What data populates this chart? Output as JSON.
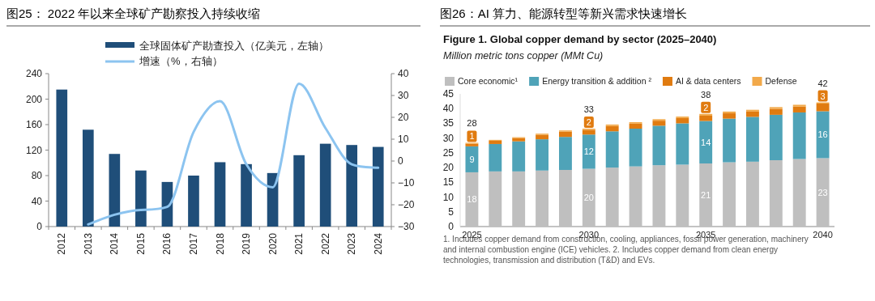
{
  "chart_data": [
    {
      "type": "bar",
      "title": "图25：  2022 年以来全球矿产勘察投入持续收缩",
      "categories": [
        "2012",
        "2013",
        "2014",
        "2015",
        "2016",
        "2017",
        "2018",
        "2019",
        "2020",
        "2021",
        "2022",
        "2023",
        "2024"
      ],
      "series": [
        {
          "name": "全球固体矿产勘查投入（亿美元，左轴）",
          "color": "#1f4e79",
          "values": [
            215,
            152,
            114,
            88,
            70,
            80,
            101,
            98,
            84,
            112,
            130,
            128,
            125
          ]
        },
        {
          "name": "增速（%，右轴）",
          "type": "line",
          "axis": "y2",
          "color": "#8cc4f0",
          "values": [
            null,
            -29,
            -24.6,
            -22.4,
            -21,
            13.3,
            27.4,
            -1.5,
            -12,
            35.4,
            15.1,
            -1.5,
            -3.1
          ]
        }
      ],
      "ylim": [
        0,
        240
      ],
      "yticks": [
        0,
        40,
        80,
        120,
        160,
        200,
        240
      ],
      "y2lim": [
        -30,
        40
      ],
      "y2ticks": [
        -30,
        -20,
        -10,
        0,
        10,
        20,
        30,
        40
      ],
      "legend": "top"
    },
    {
      "type": "bar",
      "stacked": true,
      "title": "图26：AI 算力、能源转型等新兴需求快速增长",
      "subtitle": "Figure 1. Global copper demand by sector (2025–2040)",
      "annotations": [
        "Million metric tons copper (MMt Cu)",
        "1. Includes copper demand from construction, cooling, appliances, fossil power generation, machinery and internal combustion engine (ICE) vehicles. 2. Includes copper demand from clean energy technologies, transmission and distribution (T&D) and EVs."
      ],
      "categories": [
        "2025",
        null,
        null,
        null,
        null,
        "2030",
        null,
        null,
        null,
        null,
        "2035",
        null,
        null,
        null,
        null,
        "2040"
      ],
      "series": [
        {
          "name": "Core economic¹",
          "color": "#bfbfbf",
          "values": [
            18.4,
            18.7,
            18.7,
            19.0,
            19.2,
            19.6,
            20.0,
            20.4,
            20.8,
            21.0,
            21.4,
            21.8,
            22.0,
            22.5,
            22.9,
            23.2
          ],
          "value_labels": [
            "18",
            null,
            null,
            null,
            null,
            "20",
            null,
            null,
            null,
            null,
            "21",
            null,
            null,
            null,
            null,
            "23"
          ]
        },
        {
          "name": "Energy transition & addition ²",
          "color": "#4fa3b8",
          "values": [
            8.8,
            9.3,
            10.2,
            10.6,
            11.2,
            11.6,
            12.3,
            12.8,
            13.4,
            14.0,
            14.4,
            14.8,
            15.2,
            15.4,
            15.8,
            15.9
          ],
          "value_labels": [
            "9",
            null,
            null,
            null,
            null,
            "12",
            null,
            null,
            null,
            null,
            "14",
            null,
            null,
            null,
            null,
            "16"
          ]
        },
        {
          "name": "AI & data centers",
          "color": "#e07b10",
          "values": [
            0.9,
            1.1,
            1.1,
            1.5,
            1.8,
            1.6,
            1.8,
            1.7,
            1.7,
            1.8,
            1.8,
            1.8,
            1.8,
            2.0,
            2.0,
            2.6
          ],
          "value_labels": [
            "1",
            null,
            null,
            null,
            null,
            "2",
            null,
            null,
            null,
            null,
            "2",
            null,
            null,
            null,
            null,
            "3"
          ]
        },
        {
          "name": "Defense",
          "color": "#f2a94a",
          "values": [
            0.3,
            0.3,
            0.3,
            0.4,
            0.4,
            0.4,
            0.5,
            0.5,
            0.5,
            0.5,
            0.6,
            0.6,
            0.6,
            0.6,
            0.6,
            0.4
          ]
        }
      ],
      "totals": [
        "28",
        null,
        null,
        null,
        null,
        "33",
        null,
        null,
        null,
        null,
        "38",
        null,
        null,
        null,
        null,
        "42"
      ],
      "ylim": [
        0,
        45
      ],
      "yticks": [
        0,
        5,
        10,
        15,
        20,
        25,
        30,
        35,
        40,
        45
      ],
      "legend": "top left"
    }
  ]
}
